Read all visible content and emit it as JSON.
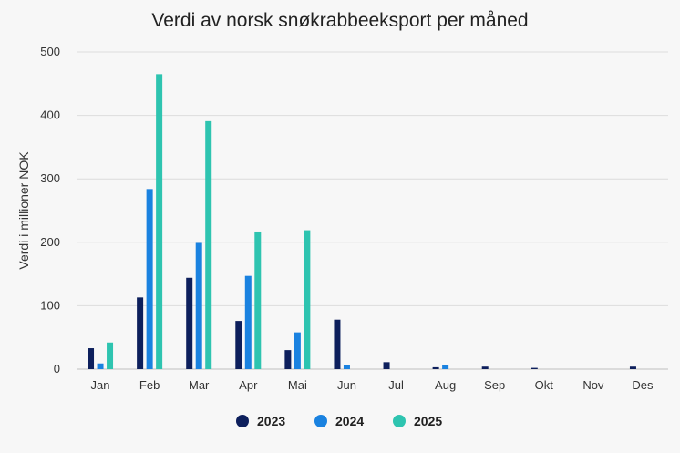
{
  "chart_data": {
    "type": "bar",
    "title": "Verdi av norsk snøkrabbeeksport per måned",
    "xlabel": "",
    "ylabel": "Verdi i millioner NOK",
    "ylim": [
      0,
      500
    ],
    "yticks": [
      0,
      100,
      200,
      300,
      400,
      500
    ],
    "ytick_labels": [
      "0",
      "100",
      "200",
      "300",
      "400",
      "500"
    ],
    "grid": true,
    "legend_position": "bottom-center",
    "categories": [
      "Jan",
      "Feb",
      "Mar",
      "Apr",
      "Mai",
      "Jun",
      "Jul",
      "Aug",
      "Sep",
      "Okt",
      "Nov",
      "Des"
    ],
    "series": [
      {
        "name": "2023",
        "color": "#0d1f5c",
        "values": [
          33,
          113,
          144,
          76,
          30,
          78,
          11,
          3,
          4,
          2,
          0,
          4
        ]
      },
      {
        "name": "2024",
        "color": "#1a82e0",
        "values": [
          9,
          284,
          199,
          147,
          58,
          6,
          0,
          6,
          0,
          0,
          0,
          0
        ]
      },
      {
        "name": "2025",
        "color": "#2ec4b0",
        "values": [
          42,
          465,
          391,
          217,
          219,
          0,
          0,
          0,
          0,
          0,
          0,
          0
        ]
      }
    ]
  }
}
